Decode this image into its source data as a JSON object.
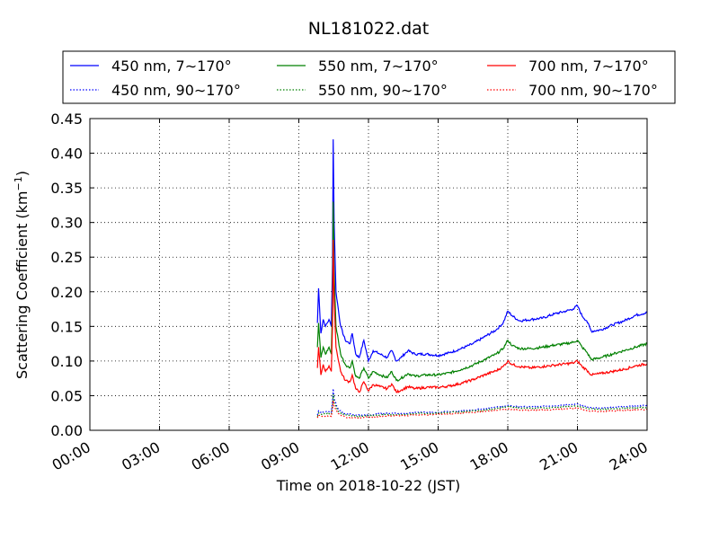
{
  "chart_data": {
    "type": "line",
    "title": "NL181022.dat",
    "xlabel": "Time on 2018-10-22 (JST)",
    "ylabel": "Scattering Coefficient (km",
    "ylabel_sup": "−1",
    "ylabel_close": ")",
    "xlim_hours": [
      0,
      24
    ],
    "ylim": [
      0,
      0.45
    ],
    "x_ticks_hours": [
      0,
      3,
      6,
      9,
      12,
      15,
      18,
      21,
      24
    ],
    "x_tick_labels": [
      "00:00",
      "03:00",
      "06:00",
      "09:00",
      "12:00",
      "15:00",
      "18:00",
      "21:00",
      "24:00"
    ],
    "y_ticks": [
      0.0,
      0.05,
      0.1,
      0.15,
      0.2,
      0.25,
      0.3,
      0.35,
      0.4,
      0.45
    ],
    "y_tick_labels": [
      "0.00",
      "0.05",
      "0.10",
      "0.15",
      "0.20",
      "0.25",
      "0.30",
      "0.35",
      "0.40",
      "0.45"
    ],
    "grid": true,
    "legend_position": "top",
    "series": [
      {
        "name": "450 nm, 7∼170°",
        "color": "#0000ff",
        "style": "solid",
        "points": [
          [
            9.8,
            0.155
          ],
          [
            9.85,
            0.205
          ],
          [
            9.95,
            0.14
          ],
          [
            10.05,
            0.16
          ],
          [
            10.15,
            0.15
          ],
          [
            10.3,
            0.16
          ],
          [
            10.4,
            0.15
          ],
          [
            10.45,
            0.24
          ],
          [
            10.48,
            0.42
          ],
          [
            10.52,
            0.3
          ],
          [
            10.6,
            0.2
          ],
          [
            10.8,
            0.15
          ],
          [
            11.0,
            0.13
          ],
          [
            11.2,
            0.125
          ],
          [
            11.3,
            0.14
          ],
          [
            11.45,
            0.11
          ],
          [
            11.6,
            0.105
          ],
          [
            11.8,
            0.13
          ],
          [
            12.0,
            0.1
          ],
          [
            12.2,
            0.115
          ],
          [
            12.5,
            0.11
          ],
          [
            12.8,
            0.105
          ],
          [
            13.0,
            0.115
          ],
          [
            13.2,
            0.1
          ],
          [
            13.4,
            0.105
          ],
          [
            13.7,
            0.115
          ],
          [
            14.0,
            0.11
          ],
          [
            14.5,
            0.11
          ],
          [
            15.0,
            0.108
          ],
          [
            15.5,
            0.112
          ],
          [
            16.0,
            0.118
          ],
          [
            16.5,
            0.125
          ],
          [
            17.0,
            0.135
          ],
          [
            17.5,
            0.145
          ],
          [
            17.8,
            0.155
          ],
          [
            18.0,
            0.172
          ],
          [
            18.2,
            0.165
          ],
          [
            18.5,
            0.158
          ],
          [
            19.0,
            0.16
          ],
          [
            19.5,
            0.162
          ],
          [
            20.0,
            0.168
          ],
          [
            20.5,
            0.172
          ],
          [
            20.8,
            0.175
          ],
          [
            21.0,
            0.18
          ],
          [
            21.2,
            0.165
          ],
          [
            21.4,
            0.158
          ],
          [
            21.6,
            0.143
          ],
          [
            22.0,
            0.145
          ],
          [
            22.5,
            0.152
          ],
          [
            23.0,
            0.158
          ],
          [
            23.5,
            0.166
          ],
          [
            24.0,
            0.17
          ]
        ]
      },
      {
        "name": "550 nm, 7∼170°",
        "color": "#008000",
        "style": "solid",
        "points": [
          [
            9.8,
            0.12
          ],
          [
            9.85,
            0.155
          ],
          [
            9.95,
            0.105
          ],
          [
            10.05,
            0.12
          ],
          [
            10.15,
            0.11
          ],
          [
            10.3,
            0.12
          ],
          [
            10.4,
            0.11
          ],
          [
            10.45,
            0.18
          ],
          [
            10.48,
            0.33
          ],
          [
            10.52,
            0.23
          ],
          [
            10.6,
            0.15
          ],
          [
            10.8,
            0.11
          ],
          [
            11.0,
            0.095
          ],
          [
            11.2,
            0.09
          ],
          [
            11.3,
            0.1
          ],
          [
            11.45,
            0.078
          ],
          [
            11.6,
            0.075
          ],
          [
            11.8,
            0.09
          ],
          [
            12.0,
            0.075
          ],
          [
            12.2,
            0.085
          ],
          [
            12.5,
            0.08
          ],
          [
            12.8,
            0.076
          ],
          [
            13.0,
            0.085
          ],
          [
            13.2,
            0.072
          ],
          [
            13.4,
            0.075
          ],
          [
            13.7,
            0.082
          ],
          [
            14.0,
            0.078
          ],
          [
            14.5,
            0.08
          ],
          [
            15.0,
            0.08
          ],
          [
            15.5,
            0.083
          ],
          [
            16.0,
            0.088
          ],
          [
            16.5,
            0.094
          ],
          [
            17.0,
            0.102
          ],
          [
            17.5,
            0.11
          ],
          [
            17.8,
            0.118
          ],
          [
            18.0,
            0.13
          ],
          [
            18.2,
            0.122
          ],
          [
            18.5,
            0.118
          ],
          [
            19.0,
            0.118
          ],
          [
            19.5,
            0.12
          ],
          [
            20.0,
            0.123
          ],
          [
            20.5,
            0.125
          ],
          [
            20.8,
            0.127
          ],
          [
            21.0,
            0.13
          ],
          [
            21.2,
            0.12
          ],
          [
            21.4,
            0.113
          ],
          [
            21.6,
            0.102
          ],
          [
            22.0,
            0.105
          ],
          [
            22.5,
            0.11
          ],
          [
            23.0,
            0.115
          ],
          [
            23.5,
            0.12
          ],
          [
            24.0,
            0.125
          ]
        ]
      },
      {
        "name": "700 nm, 7∼170°",
        "color": "#ff0000",
        "style": "solid",
        "points": [
          [
            9.8,
            0.09
          ],
          [
            9.85,
            0.12
          ],
          [
            9.95,
            0.08
          ],
          [
            10.05,
            0.095
          ],
          [
            10.15,
            0.085
          ],
          [
            10.3,
            0.093
          ],
          [
            10.4,
            0.085
          ],
          [
            10.45,
            0.15
          ],
          [
            10.48,
            0.275
          ],
          [
            10.52,
            0.19
          ],
          [
            10.6,
            0.12
          ],
          [
            10.8,
            0.085
          ],
          [
            11.0,
            0.072
          ],
          [
            11.2,
            0.07
          ],
          [
            11.3,
            0.08
          ],
          [
            11.45,
            0.06
          ],
          [
            11.6,
            0.055
          ],
          [
            11.8,
            0.07
          ],
          [
            12.0,
            0.057
          ],
          [
            12.2,
            0.066
          ],
          [
            12.5,
            0.063
          ],
          [
            12.8,
            0.06
          ],
          [
            13.0,
            0.067
          ],
          [
            13.2,
            0.055
          ],
          [
            13.4,
            0.058
          ],
          [
            13.7,
            0.063
          ],
          [
            14.0,
            0.06
          ],
          [
            14.5,
            0.062
          ],
          [
            15.0,
            0.062
          ],
          [
            15.5,
            0.064
          ],
          [
            16.0,
            0.068
          ],
          [
            16.5,
            0.073
          ],
          [
            17.0,
            0.08
          ],
          [
            17.5,
            0.086
          ],
          [
            17.8,
            0.092
          ],
          [
            18.0,
            0.1
          ],
          [
            18.2,
            0.095
          ],
          [
            18.5,
            0.092
          ],
          [
            19.0,
            0.09
          ],
          [
            19.5,
            0.092
          ],
          [
            20.0,
            0.094
          ],
          [
            20.5,
            0.096
          ],
          [
            20.8,
            0.097
          ],
          [
            21.0,
            0.1
          ],
          [
            21.2,
            0.092
          ],
          [
            21.4,
            0.087
          ],
          [
            21.6,
            0.08
          ],
          [
            22.0,
            0.082
          ],
          [
            22.5,
            0.085
          ],
          [
            23.0,
            0.088
          ],
          [
            23.5,
            0.093
          ],
          [
            24.0,
            0.096
          ]
        ]
      },
      {
        "name": "450 nm, 90∼170°",
        "color": "#0000ff",
        "style": "dotted",
        "points": [
          [
            9.8,
            0.022
          ],
          [
            9.85,
            0.028
          ],
          [
            10.0,
            0.025
          ],
          [
            10.2,
            0.027
          ],
          [
            10.4,
            0.026
          ],
          [
            10.45,
            0.042
          ],
          [
            10.48,
            0.06
          ],
          [
            10.52,
            0.045
          ],
          [
            10.7,
            0.03
          ],
          [
            11.0,
            0.024
          ],
          [
            11.5,
            0.022
          ],
          [
            12.0,
            0.022
          ],
          [
            12.5,
            0.024
          ],
          [
            13.0,
            0.025
          ],
          [
            13.5,
            0.024
          ],
          [
            14.0,
            0.026
          ],
          [
            15.0,
            0.026
          ],
          [
            16.0,
            0.028
          ],
          [
            17.0,
            0.031
          ],
          [
            18.0,
            0.036
          ],
          [
            18.5,
            0.034
          ],
          [
            19.0,
            0.034
          ],
          [
            20.0,
            0.035
          ],
          [
            21.0,
            0.038
          ],
          [
            21.5,
            0.033
          ],
          [
            22.0,
            0.032
          ],
          [
            23.0,
            0.034
          ],
          [
            24.0,
            0.036
          ]
        ]
      },
      {
        "name": "550 nm, 90∼170°",
        "color": "#008000",
        "style": "dotted",
        "points": [
          [
            9.8,
            0.02
          ],
          [
            9.85,
            0.025
          ],
          [
            10.0,
            0.023
          ],
          [
            10.2,
            0.024
          ],
          [
            10.4,
            0.023
          ],
          [
            10.45,
            0.036
          ],
          [
            10.48,
            0.052
          ],
          [
            10.52,
            0.04
          ],
          [
            10.7,
            0.027
          ],
          [
            11.0,
            0.022
          ],
          [
            11.5,
            0.02
          ],
          [
            12.0,
            0.021
          ],
          [
            12.5,
            0.022
          ],
          [
            13.0,
            0.023
          ],
          [
            13.5,
            0.023
          ],
          [
            14.0,
            0.024
          ],
          [
            15.0,
            0.025
          ],
          [
            16.0,
            0.027
          ],
          [
            17.0,
            0.029
          ],
          [
            18.0,
            0.034
          ],
          [
            18.5,
            0.032
          ],
          [
            19.0,
            0.032
          ],
          [
            20.0,
            0.033
          ],
          [
            21.0,
            0.035
          ],
          [
            21.5,
            0.031
          ],
          [
            22.0,
            0.03
          ],
          [
            23.0,
            0.032
          ],
          [
            24.0,
            0.033
          ]
        ]
      },
      {
        "name": "700 nm, 90∼170°",
        "color": "#ff0000",
        "style": "dotted",
        "points": [
          [
            9.8,
            0.018
          ],
          [
            9.85,
            0.022
          ],
          [
            10.0,
            0.02
          ],
          [
            10.2,
            0.021
          ],
          [
            10.4,
            0.02
          ],
          [
            10.45,
            0.03
          ],
          [
            10.48,
            0.043
          ],
          [
            10.52,
            0.034
          ],
          [
            10.7,
            0.024
          ],
          [
            11.0,
            0.019
          ],
          [
            11.5,
            0.018
          ],
          [
            12.0,
            0.019
          ],
          [
            12.5,
            0.02
          ],
          [
            13.0,
            0.021
          ],
          [
            13.5,
            0.021
          ],
          [
            14.0,
            0.022
          ],
          [
            15.0,
            0.023
          ],
          [
            16.0,
            0.025
          ],
          [
            17.0,
            0.027
          ],
          [
            18.0,
            0.031
          ],
          [
            18.5,
            0.029
          ],
          [
            19.0,
            0.029
          ],
          [
            20.0,
            0.03
          ],
          [
            21.0,
            0.032
          ],
          [
            21.5,
            0.028
          ],
          [
            22.0,
            0.027
          ],
          [
            23.0,
            0.029
          ],
          [
            24.0,
            0.03
          ]
        ]
      }
    ]
  }
}
